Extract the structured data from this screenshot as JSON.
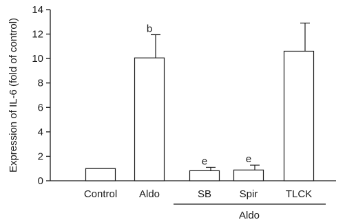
{
  "chart_data": {
    "type": "bar",
    "categories": [
      "Control",
      "Aldo",
      "SB",
      "Spir",
      "TLCK"
    ],
    "values": [
      1.0,
      10.05,
      0.82,
      0.88,
      10.6
    ],
    "errors": [
      0,
      1.9,
      0.28,
      0.4,
      2.3
    ],
    "significance": [
      "",
      "b",
      "e",
      "e",
      ""
    ],
    "ylabel": "Expression of IL-6 (fold of control)",
    "xlabel": "",
    "ylim": [
      0,
      14
    ],
    "yticks": [
      0,
      2,
      4,
      6,
      8,
      10,
      12,
      14
    ],
    "group": {
      "label": "Aldo",
      "categories": [
        "SB",
        "Spir",
        "TLCK"
      ]
    },
    "grid": false,
    "colors": {
      "bar_fill": "#ffffff",
      "stroke": "#1a1a1a"
    }
  }
}
